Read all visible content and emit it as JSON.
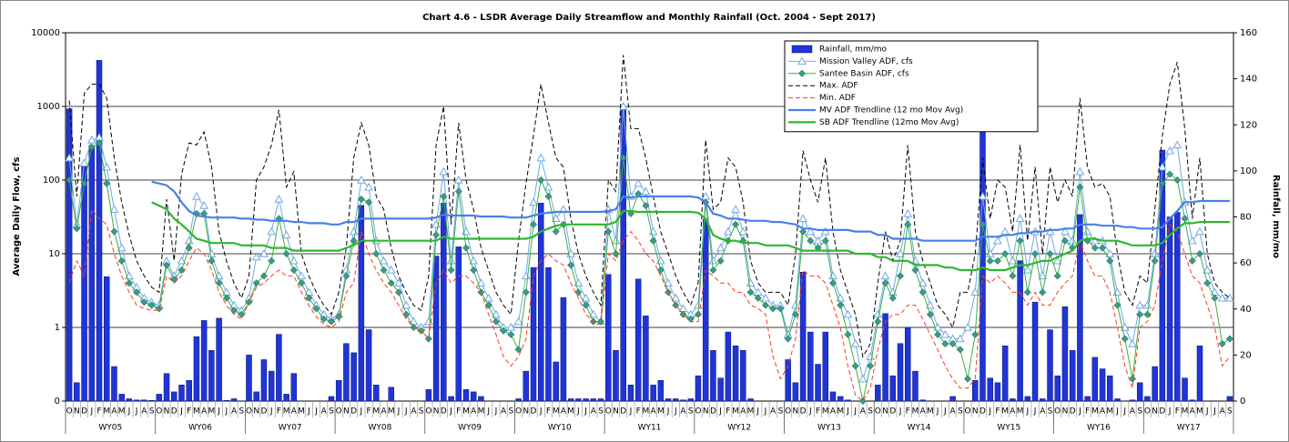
{
  "chart_data": {
    "type": "combo",
    "title": "Chart 4.6 - LSDR Average Daily Streamflow and Monthly Rainfall (Oct. 2004 - Sept 2017)",
    "ylabel": "Average Daily Flow, cfs",
    "y2label": "Rainfall, mm/mo",
    "yscale": "log",
    "grid": true,
    "legend": "upper-right",
    "categories": [
      "O",
      "N",
      "D",
      "J",
      "F",
      "M",
      "A",
      "M",
      "J",
      "J",
      "A",
      "S",
      "O",
      "N",
      "D",
      "J",
      "F",
      "M",
      "A",
      "M",
      "J",
      "J",
      "A",
      "S",
      "O",
      "N",
      "D",
      "J",
      "F",
      "M",
      "A",
      "M",
      "J",
      "J",
      "A",
      "S",
      "O",
      "N",
      "D",
      "J",
      "F",
      "M",
      "A",
      "M",
      "J",
      "J",
      "A",
      "S",
      "O",
      "N",
      "D",
      "J",
      "F",
      "M",
      "A",
      "M",
      "J",
      "J",
      "A",
      "S",
      "O",
      "N",
      "D",
      "J",
      "F",
      "M",
      "A",
      "M",
      "J",
      "J",
      "A",
      "S",
      "O",
      "N",
      "D",
      "J",
      "F",
      "M",
      "A",
      "M",
      "J",
      "J",
      "A",
      "S",
      "O",
      "N",
      "D",
      "J",
      "F",
      "M",
      "A",
      "M",
      "J",
      "J",
      "A",
      "S",
      "O",
      "N",
      "D",
      "J",
      "F",
      "M",
      "A",
      "M",
      "J",
      "J",
      "A",
      "S",
      "O",
      "N",
      "D",
      "J",
      "F",
      "M",
      "A",
      "M",
      "J",
      "J",
      "A",
      "S",
      "O",
      "N",
      "D",
      "J",
      "F",
      "M",
      "A",
      "M",
      "J",
      "J",
      "A",
      "S",
      "O",
      "N",
      "D",
      "J",
      "F",
      "M",
      "A",
      "M",
      "J",
      "J",
      "A",
      "S",
      "O",
      "N",
      "D",
      "J",
      "F",
      "M",
      "A",
      "M",
      "J",
      "J",
      "A",
      "S"
    ],
    "groups": [
      "WY05",
      "WY06",
      "WY07",
      "WY08",
      "WY09",
      "WY10",
      "WY11",
      "WY12",
      "WY13",
      "WY14",
      "WY15",
      "WY16",
      "WY17"
    ],
    "ylim": [
      0.1,
      10000
    ],
    "yticks": [
      {
        "value": 0.1,
        "label": "0"
      },
      1,
      10,
      100,
      1000,
      10000
    ],
    "y2lim": [
      0,
      160
    ],
    "y2ticks": [
      0,
      20,
      40,
      60,
      80,
      100,
      120,
      140,
      160
    ],
    "series": [
      {
        "name": "Rainfall, mm/mo",
        "type": "bar",
        "axis": "y2",
        "color": "#1f35d8",
        "values": [
          127,
          8,
          102,
          111,
          148,
          54,
          15,
          3,
          1,
          0.5,
          0.5,
          0.3,
          3,
          12,
          4,
          7,
          9,
          28,
          35,
          22,
          36,
          0.3,
          1,
          0,
          20,
          4,
          18,
          13,
          29,
          3,
          12,
          0,
          0,
          0,
          0,
          2,
          9,
          25,
          21,
          85,
          31,
          7,
          0,
          6,
          0,
          0,
          0,
          0,
          5,
          63,
          86,
          2,
          67,
          5,
          4,
          2,
          0,
          0,
          0,
          0,
          1,
          13,
          58,
          86,
          58,
          17,
          45,
          1,
          1,
          1,
          1,
          1,
          55,
          22,
          127,
          7,
          53,
          37,
          7,
          9,
          1,
          1,
          0.5,
          1,
          11,
          79,
          22,
          10,
          30,
          24,
          22,
          1,
          0,
          0,
          0,
          0,
          18,
          8,
          56,
          30,
          16,
          30,
          4,
          2,
          0.5,
          0,
          0,
          0,
          7,
          38,
          11,
          25,
          32,
          13,
          0.5,
          0,
          0,
          0,
          2,
          0,
          0,
          9,
          125,
          10,
          8,
          24,
          1,
          61,
          2,
          43,
          1,
          31,
          11,
          41,
          22,
          81,
          2,
          19,
          14,
          11,
          1,
          0,
          0.5,
          8,
          2,
          15,
          109,
          80,
          82,
          10,
          0.5,
          24,
          0,
          0,
          0,
          2
        ]
      },
      {
        "name": "Mission Valley ADF, cfs",
        "type": "line",
        "marker": "triangle",
        "color": "#6fa8e6",
        "values": [
          200,
          25,
          170,
          350,
          380,
          150,
          40,
          12,
          5,
          3.5,
          2.5,
          2.2,
          2,
          8,
          5,
          8,
          15,
          60,
          45,
          10,
          5,
          3,
          2,
          1.7,
          2.5,
          9,
          10,
          20,
          55,
          18,
          8,
          5,
          3,
          2,
          1.5,
          1.3,
          1.5,
          6,
          20,
          100,
          80,
          15,
          8,
          6,
          4,
          2,
          1.2,
          1,
          1.2,
          25,
          130,
          8,
          100,
          20,
          8,
          4,
          2.5,
          1.5,
          1,
          1,
          1.2,
          5,
          50,
          200,
          80,
          30,
          40,
          10,
          4,
          2.5,
          1.5,
          1.2,
          40,
          15,
          1000,
          60,
          90,
          70,
          20,
          8,
          4,
          2.5,
          1.8,
          1.5,
          2,
          60,
          8,
          12,
          20,
          40,
          20,
          4,
          3,
          2.5,
          2,
          2,
          0.8,
          2,
          30,
          20,
          15,
          20,
          5,
          2.5,
          1.5,
          0.6,
          0.2,
          0.4,
          1.5,
          5,
          3,
          10,
          35,
          8,
          4,
          2,
          1,
          0.8,
          0.7,
          0.7,
          1,
          3,
          60,
          10,
          15,
          20,
          8,
          30,
          6,
          20,
          5,
          20,
          8,
          20,
          15,
          130,
          20,
          15,
          15,
          10,
          3,
          1,
          0.6,
          2,
          2,
          10,
          150,
          250,
          300,
          50,
          15,
          20,
          6,
          3,
          2.5,
          2.5
        ]
      },
      {
        "name": "Santee Basin ADF, cfs",
        "type": "line",
        "marker": "diamond",
        "color": "#3cb043",
        "values": [
          100,
          22,
          90,
          280,
          320,
          90,
          20,
          8,
          4,
          3,
          2.2,
          2,
          1.8,
          7,
          4.5,
          6,
          12,
          35,
          35,
          8,
          4,
          2.5,
          1.7,
          1.5,
          2.2,
          4,
          5,
          8,
          30,
          10,
          6,
          4,
          2.5,
          1.8,
          1.3,
          1.2,
          1.4,
          5,
          15,
          55,
          50,
          10,
          6,
          4,
          3,
          1.5,
          1,
          0.9,
          0.7,
          18,
          60,
          6,
          70,
          12,
          6,
          3,
          2,
          1.2,
          0.9,
          0.8,
          0.5,
          3,
          25,
          100,
          60,
          20,
          25,
          7,
          3,
          2,
          1.2,
          1.2,
          20,
          10,
          200,
          35,
          65,
          45,
          15,
          6,
          3,
          2,
          1.5,
          1.3,
          1.5,
          50,
          6,
          8,
          15,
          25,
          15,
          3,
          2.5,
          2,
          1.8,
          1.8,
          0.7,
          1.5,
          20,
          15,
          12,
          15,
          4,
          2,
          0.8,
          0.3,
          0.1,
          0.3,
          1.2,
          4,
          2.5,
          5,
          25,
          6,
          3,
          1.5,
          0.8,
          0.6,
          0.6,
          0.5,
          0.2,
          0.8,
          25,
          8,
          8,
          10,
          5,
          15,
          3,
          10,
          3,
          10,
          5,
          15,
          12,
          80,
          15,
          12,
          12,
          8,
          2,
          0.7,
          0.2,
          1.5,
          1.5,
          8,
          90,
          120,
          100,
          30,
          8,
          10,
          4,
          2.5,
          0.6,
          0.7
        ]
      },
      {
        "name": "Max. ADF",
        "type": "line",
        "dash": "dashed",
        "color": "#000000",
        "values": [
          1200,
          60,
          1500,
          2000,
          2000,
          1300,
          200,
          50,
          18,
          8,
          5,
          3.5,
          3,
          55,
          8,
          120,
          320,
          300,
          450,
          150,
          20,
          8,
          4,
          2.5,
          5,
          100,
          150,
          300,
          900,
          80,
          130,
          10,
          5,
          3,
          2,
          1.5,
          3,
          12,
          200,
          600,
          300,
          60,
          40,
          12,
          5,
          3,
          2,
          1.7,
          5,
          300,
          1000,
          25,
          600,
          100,
          40,
          12,
          6,
          3,
          2,
          1.5,
          15,
          90,
          400,
          2000,
          600,
          200,
          150,
          30,
          10,
          5,
          3,
          2,
          100,
          70,
          5000,
          500,
          500,
          200,
          60,
          20,
          10,
          5,
          3,
          2,
          4,
          350,
          40,
          50,
          200,
          150,
          50,
          8,
          4,
          3,
          3,
          3,
          2,
          10,
          250,
          100,
          50,
          200,
          20,
          6,
          3,
          1.5,
          0.4,
          0.6,
          4,
          20,
          8,
          15,
          300,
          20,
          8,
          4,
          2,
          1.5,
          1,
          3,
          3,
          10,
          200,
          30,
          100,
          80,
          20,
          300,
          15,
          150,
          10,
          150,
          50,
          100,
          60,
          1300,
          150,
          80,
          90,
          60,
          10,
          3,
          2,
          5,
          4,
          40,
          400,
          2000,
          4000,
          500,
          30,
          200,
          10,
          4,
          3,
          2.5
        ]
      },
      {
        "name": "Min. ADF",
        "type": "line",
        "dash": "dashed",
        "color": "#ff3a1a",
        "values": [
          4,
          8,
          5,
          40,
          30,
          25,
          10,
          5,
          3,
          2,
          1.8,
          1.7,
          1.7,
          5,
          4,
          5,
          8,
          12,
          10,
          6,
          3,
          2,
          1.5,
          1.3,
          2.2,
          3.5,
          4,
          5,
          6,
          5,
          5,
          3,
          2,
          1.4,
          1.1,
          1,
          1.2,
          3,
          4,
          20,
          10,
          6,
          4,
          3,
          2,
          1.3,
          1,
          0.9,
          0.7,
          4,
          6,
          4,
          5,
          5,
          4,
          3,
          1.5,
          0.8,
          0.4,
          0.3,
          0.4,
          0.7,
          5,
          8,
          10,
          8,
          7,
          4,
          2.5,
          1.5,
          1.2,
          1.1,
          10,
          8,
          15,
          20,
          15,
          10,
          8,
          5,
          3,
          2,
          1.5,
          1.2,
          1.2,
          6,
          5,
          4,
          4,
          3,
          3,
          2,
          1.8,
          1.5,
          0.4,
          0.2,
          0.3,
          0.7,
          6,
          5,
          5,
          4,
          2,
          1,
          0.3,
          0.12,
          0.1,
          0.15,
          0.5,
          1.2,
          1.5,
          1.5,
          2,
          2,
          1.3,
          0.8,
          0.5,
          0.3,
          0.2,
          0.15,
          0.15,
          0.2,
          5,
          4,
          5,
          4,
          3,
          3,
          2,
          3,
          2,
          2,
          3,
          4,
          5,
          15,
          8,
          5,
          5,
          3,
          1,
          0.3,
          0.15,
          1,
          1.2,
          2,
          8,
          25,
          20,
          10,
          5,
          4,
          2,
          1,
          0.3,
          0.4
        ]
      },
      {
        "name": "MV ADF Trendline (12 mo Mov Avg)",
        "type": "line",
        "width": 2.2,
        "color": "#4a7fe8",
        "values": [
          null,
          null,
          null,
          null,
          null,
          null,
          null,
          null,
          null,
          null,
          null,
          95,
          90,
          85,
          70,
          50,
          38,
          33,
          32,
          31,
          31,
          31,
          31,
          30,
          30,
          29,
          29,
          28,
          28,
          28,
          27,
          27,
          26,
          26,
          26,
          25,
          25,
          27,
          27,
          30,
          30,
          30,
          30,
          30,
          30,
          30,
          30,
          30,
          30,
          31,
          34,
          33,
          33,
          33,
          33,
          32,
          32,
          32,
          32,
          31,
          31,
          31,
          33,
          35,
          36,
          37,
          37,
          37,
          37,
          37,
          37,
          37,
          38,
          40,
          60,
          58,
          60,
          60,
          60,
          60,
          60,
          60,
          60,
          60,
          58,
          50,
          35,
          33,
          30,
          30,
          29,
          28,
          28,
          28,
          27,
          27,
          26,
          25,
          22,
          22,
          21,
          21,
          21,
          21,
          21,
          20,
          20,
          20,
          18,
          18,
          16,
          16,
          16,
          16,
          15,
          15,
          15,
          15,
          15,
          15,
          15,
          15,
          17,
          17,
          17,
          18,
          18,
          19,
          19,
          20,
          20,
          21,
          21,
          22,
          22,
          25,
          25,
          25,
          24,
          24,
          24,
          23,
          23,
          22,
          22,
          22,
          23,
          30,
          38,
          50,
          50,
          52,
          52,
          52,
          52,
          52
        ]
      },
      {
        "name": "SB ADF Trendline (12mo Mov Avg)",
        "type": "line",
        "width": 2.2,
        "color": "#2db82d",
        "values": [
          null,
          null,
          null,
          null,
          null,
          null,
          null,
          null,
          null,
          null,
          null,
          50,
          45,
          40,
          30,
          25,
          20,
          16,
          15,
          14,
          14,
          14,
          14,
          13,
          13,
          13,
          13,
          12,
          12,
          12,
          11,
          11,
          11,
          11,
          11,
          11,
          11,
          12,
          13,
          15,
          15,
          15,
          15,
          15,
          15,
          15,
          15,
          15,
          15,
          15,
          17,
          16,
          16,
          16,
          16,
          16,
          16,
          16,
          16,
          16,
          16,
          16,
          17,
          20,
          22,
          24,
          25,
          25,
          25,
          25,
          25,
          25,
          25,
          27,
          38,
          38,
          37,
          37,
          37,
          37,
          37,
          37,
          37,
          37,
          36,
          30,
          18,
          16,
          15,
          15,
          14,
          14,
          14,
          13,
          13,
          13,
          13,
          12,
          11,
          11,
          11,
          11,
          11,
          11,
          11,
          10,
          10,
          10,
          9,
          9,
          8,
          8,
          8,
          7,
          7,
          7,
          7,
          6.5,
          6.5,
          6,
          6,
          6,
          6.5,
          6,
          6,
          6,
          6.5,
          7,
          7,
          7.5,
          8,
          8,
          9,
          10,
          11,
          15,
          16,
          16,
          15,
          15,
          15,
          14,
          13,
          13,
          13,
          13,
          14,
          18,
          22,
          26,
          26,
          27,
          27,
          27,
          27,
          27
        ]
      }
    ]
  }
}
